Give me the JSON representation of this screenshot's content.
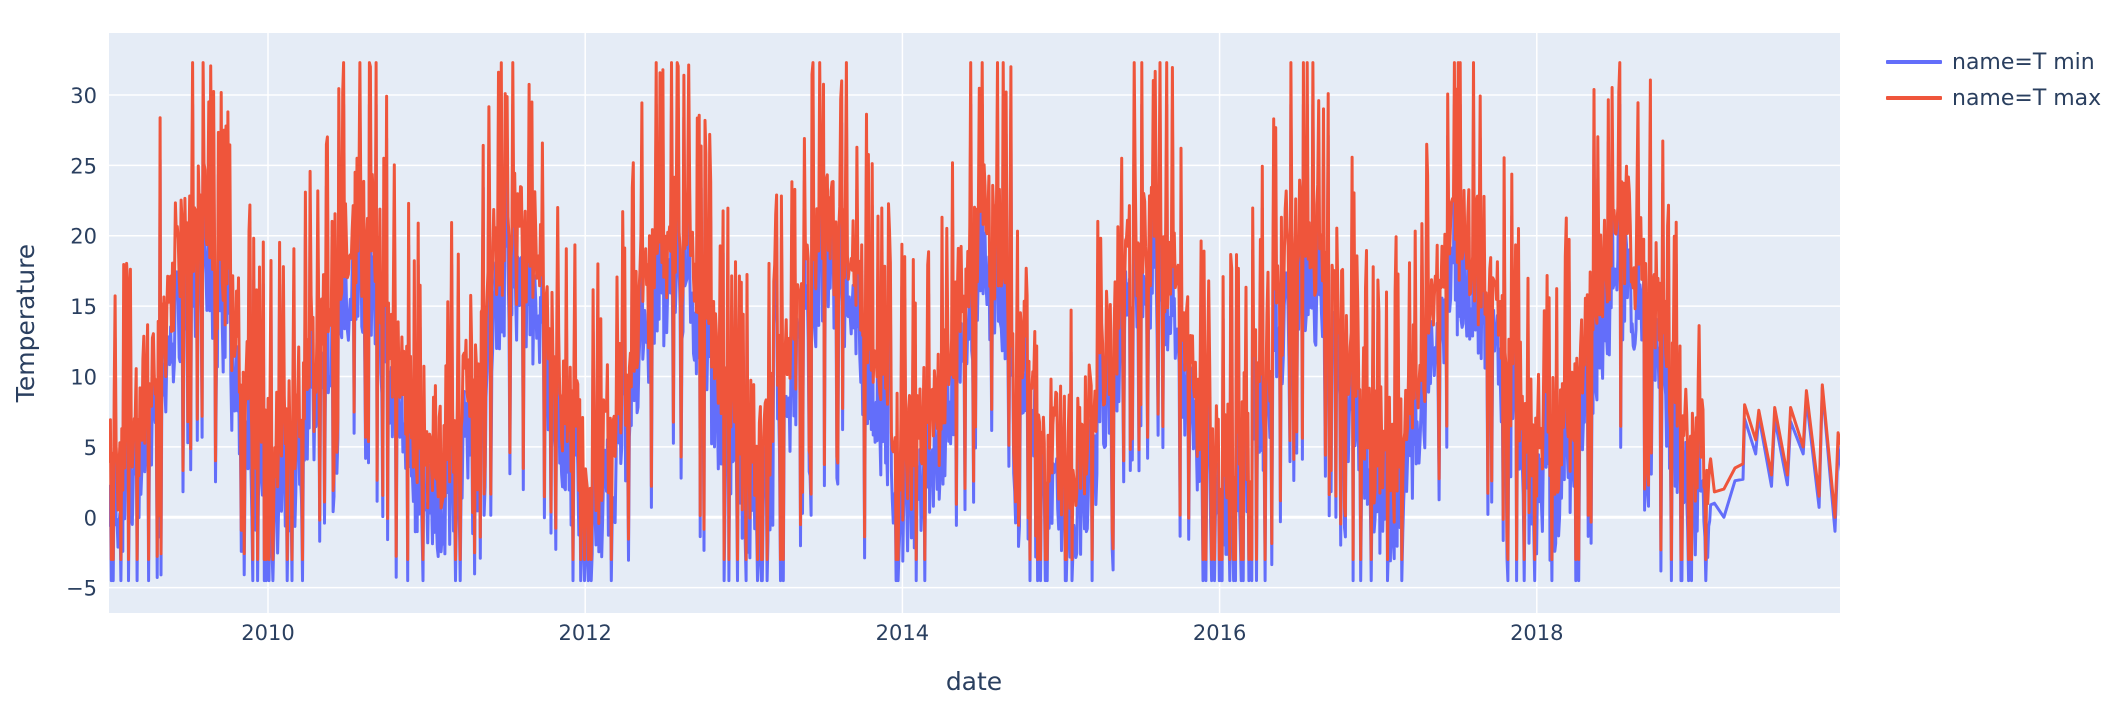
{
  "chart_data": {
    "type": "line",
    "title": "",
    "xlabel": "date",
    "ylabel": "Temperature",
    "x_range": [
      "2009-01-01",
      "2019-11-30"
    ],
    "ylim": [
      -6.8,
      34.4
    ],
    "grid": true,
    "legend_position": "right-top",
    "x_ticks": [
      "2010",
      "2012",
      "2014",
      "2016",
      "2018"
    ],
    "y_ticks": [
      -5,
      0,
      5,
      10,
      15,
      20,
      25,
      30
    ],
    "series": [
      {
        "name": "name=T min",
        "color": "#636efa",
        "description": "Daily minimum temperature; seasonal cycle with summer peaks ~20-24 and winter lows ~-4; sparse after early 2019",
        "approx_min": -4.5,
        "approx_max": 24,
        "sample_points": [
          {
            "x": "2009-06",
            "y": 18
          },
          {
            "x": "2010-01",
            "y": -3.5
          },
          {
            "x": "2010-07",
            "y": 20
          },
          {
            "x": "2011-01",
            "y": -3.5
          },
          {
            "x": "2011-07",
            "y": 19
          },
          {
            "x": "2012-02",
            "y": -4.5
          },
          {
            "x": "2012-08",
            "y": 21
          },
          {
            "x": "2013-01",
            "y": -3
          },
          {
            "x": "2013-07",
            "y": 20
          },
          {
            "x": "2014-01",
            "y": -0.3
          },
          {
            "x": "2014-07",
            "y": 20
          },
          {
            "x": "2015-01",
            "y": -1
          },
          {
            "x": "2015-07",
            "y": 22
          },
          {
            "x": "2016-01",
            "y": 1
          },
          {
            "x": "2016-07",
            "y": 20
          },
          {
            "x": "2017-01",
            "y": -3.5
          },
          {
            "x": "2017-07",
            "y": 20
          },
          {
            "x": "2018-02",
            "y": -2
          },
          {
            "x": "2018-07",
            "y": 21
          },
          {
            "x": "2019-02",
            "y": 0
          },
          {
            "x": "2019-11",
            "y": -1
          }
        ]
      },
      {
        "name": "name=T max",
        "color": "#EF553B",
        "description": "Daily maximum temperature; seasonal cycle with summer peaks ~26-32 and winter lows ~0-5; spike pattern throughout",
        "approx_min": -4,
        "approx_max": 32.3,
        "sample_points": [
          {
            "x": "2009-01",
            "y": 27
          },
          {
            "x": "2009-07",
            "y": 28.5
          },
          {
            "x": "2010-01",
            "y": 5
          },
          {
            "x": "2010-08",
            "y": 29
          },
          {
            "x": "2011-01",
            "y": 4
          },
          {
            "x": "2011-07",
            "y": 28
          },
          {
            "x": "2012-02",
            "y": 3
          },
          {
            "x": "2012-08",
            "y": 30
          },
          {
            "x": "2013-01",
            "y": 5
          },
          {
            "x": "2013-07",
            "y": 27
          },
          {
            "x": "2014-01",
            "y": 5
          },
          {
            "x": "2014-07",
            "y": 29
          },
          {
            "x": "2015-01",
            "y": 4
          },
          {
            "x": "2015-07",
            "y": 32.3
          },
          {
            "x": "2016-01",
            "y": 5
          },
          {
            "x": "2016-07",
            "y": 29
          },
          {
            "x": "2017-01",
            "y": 2
          },
          {
            "x": "2017-07",
            "y": 29.5
          },
          {
            "x": "2018-02",
            "y": 3
          },
          {
            "x": "2018-08",
            "y": 29
          },
          {
            "x": "2019-02",
            "y": 12.5
          },
          {
            "x": "2019-05",
            "y": 8
          },
          {
            "x": "2019-09",
            "y": 9.3
          },
          {
            "x": "2019-11",
            "y": 4.5
          }
        ]
      }
    ]
  },
  "legend": {
    "items": [
      {
        "label": "name=T min",
        "color": "#636efa"
      },
      {
        "label": "name=T max",
        "color": "#EF553B"
      }
    ]
  },
  "colors": {
    "plot_bg": "#e5ecf6",
    "grid": "#ffffff",
    "text": "#2a3f5f"
  }
}
